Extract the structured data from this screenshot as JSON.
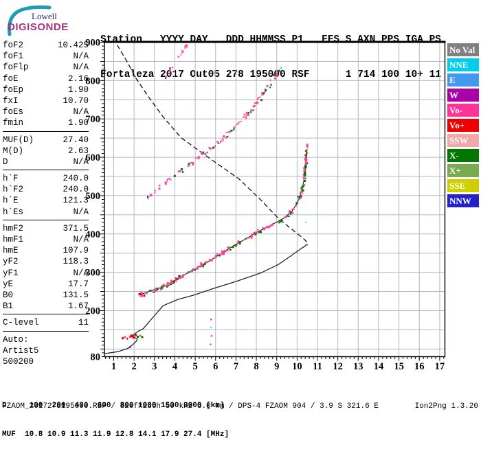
{
  "logo": {
    "line1": "Lowell",
    "line2": "DIGISONDE",
    "arc_color": "#1d9cb4"
  },
  "header": {
    "line1": "Station   YYYY DAY   DDD HHMMSS P1   FFS S AXN PPS IGA PS",
    "line2": "Fortaleza 2017 Out05 278 195000 RSF      1 714 100 10+ 11"
  },
  "sidebar": {
    "sections": [
      {
        "rows": [
          [
            "foF2",
            "10.425"
          ],
          [
            "foF1",
            "N/A"
          ],
          [
            "foFlp",
            "N/A"
          ],
          [
            "foE",
            "2.16"
          ],
          [
            "foEp",
            "1.90"
          ],
          [
            "fxI",
            "10.70"
          ],
          [
            "foEs",
            "N/A"
          ],
          [
            "fmin",
            "1.90"
          ]
        ]
      },
      {
        "rows": [
          [
            "MUF(D)",
            "27.40"
          ],
          [
            "M(D)",
            "2.63"
          ],
          [
            "D",
            "N/A"
          ]
        ]
      },
      {
        "rows": [
          [
            "h`F",
            "240.0"
          ],
          [
            "h`F2",
            "240.0"
          ],
          [
            "h`E",
            "121.3"
          ],
          [
            "h`Es",
            "N/A"
          ]
        ]
      },
      {
        "rows": [
          [
            "hmF2",
            "371.5"
          ],
          [
            "hmF1",
            "N/A"
          ],
          [
            "hmE",
            "107.9"
          ],
          [
            "yF2",
            "118.3"
          ],
          [
            "yF1",
            "N/A"
          ],
          [
            "yE",
            "17.7"
          ],
          [
            "B0",
            "131.5"
          ],
          [
            "B1",
            "1.67"
          ]
        ]
      },
      {
        "rows": [
          [
            "C-level",
            "11"
          ]
        ]
      },
      {
        "rows": [
          [
            "Auto:",
            ""
          ],
          [
            "Artist5",
            ""
          ],
          [
            "500200",
            ""
          ]
        ],
        "no_rule": true
      }
    ]
  },
  "legend": {
    "items": [
      {
        "label": "No Val",
        "color": "#808080"
      },
      {
        "label": "NNE",
        "color": "#00ccee"
      },
      {
        "label": "E",
        "color": "#4499ee"
      },
      {
        "label": "W",
        "color": "#aa00aa"
      },
      {
        "label": "Vo-",
        "color": "#ff3399"
      },
      {
        "label": "Vo+",
        "color": "#ee0000"
      },
      {
        "label": "SSW",
        "color": "#f2a8a8"
      },
      {
        "label": "X-",
        "color": "#007700"
      },
      {
        "label": "X+",
        "color": "#78aa50"
      },
      {
        "label": "SSE",
        "color": "#cfcf00"
      },
      {
        "label": "NNW",
        "color": "#2222cc"
      }
    ]
  },
  "bottom": {
    "d_row": "D     100  200  400  600  800 1000 1500 3000 [km]",
    "muf_row": "MUF  10.8 10.9 11.3 11.9 12.8 14.1 17.9 27.4 [MHz]",
    "status_left": "FZAOM_2017278195000.RSF / 320fx256h 50 kHz 5.0 km / DPS-4 FZAOM 904 / 3.9 S 321.6 E",
    "status_right": "Ion2Png 1.3.20"
  },
  "chart_data": {
    "type": "scatter",
    "x_axis": {
      "unit": "MHz",
      "ticks": [
        1,
        2,
        3,
        4,
        5,
        6,
        7,
        8,
        9,
        10,
        11,
        12,
        13,
        14,
        15,
        16,
        17
      ],
      "range": [
        0.56,
        17.26
      ],
      "minor_step": 0.2
    },
    "y_axis": {
      "unit": "km",
      "labeled_ticks": [
        900,
        800,
        700,
        600,
        500,
        400,
        300,
        200,
        80
      ],
      "range": [
        80,
        900
      ],
      "minor_step": 10,
      "grid_step": 50
    },
    "grid_color": "#b0b6c4",
    "muf_table": {
      "D_km": [
        100,
        200,
        400,
        600,
        800,
        1000,
        1500,
        3000
      ],
      "MUF_MHz": [
        10.8,
        10.9,
        11.3,
        11.9,
        12.8,
        14.1,
        17.9,
        27.4
      ]
    },
    "profile_line": [
      [
        0.58,
        88
      ],
      [
        1.2,
        93
      ],
      [
        1.67,
        101
      ],
      [
        1.95,
        112
      ],
      [
        2.1,
        120
      ],
      [
        2.16,
        126
      ],
      [
        2.02,
        130
      ],
      [
        1.94,
        133
      ],
      [
        2.02,
        139
      ],
      [
        2.2,
        146
      ],
      [
        2.45,
        153
      ],
      [
        2.92,
        182
      ],
      [
        3.43,
        213
      ],
      [
        4.14,
        229
      ],
      [
        4.9,
        240
      ],
      [
        5.9,
        258
      ],
      [
        7.0,
        276
      ],
      [
        8.25,
        299
      ],
      [
        9.1,
        321
      ],
      [
        9.7,
        343
      ],
      [
        10.17,
        361
      ],
      [
        10.38,
        368
      ],
      [
        10.47,
        372
      ],
      [
        10.52,
        371
      ]
    ],
    "fitted_trace": [
      [
        2.25,
        241
      ],
      [
        2.84,
        252
      ],
      [
        3.51,
        264
      ],
      [
        4.42,
        292
      ],
      [
        5.53,
        324
      ],
      [
        6.88,
        369
      ],
      [
        8.23,
        410
      ],
      [
        8.9,
        428
      ],
      [
        9.34,
        441
      ],
      [
        9.75,
        459
      ],
      [
        10.02,
        482
      ],
      [
        10.25,
        518
      ],
      [
        10.4,
        559
      ],
      [
        10.46,
        598
      ],
      [
        10.49,
        622
      ]
    ],
    "transmission_curve_dashed": [
      [
        1.17,
        893
      ],
      [
        1.67,
        848
      ],
      [
        2.08,
        807
      ],
      [
        2.69,
        759
      ],
      [
        3.43,
        705
      ],
      [
        4.31,
        651
      ],
      [
        5.55,
        603
      ],
      [
        7.14,
        544
      ],
      [
        8.25,
        487
      ],
      [
        9.09,
        440
      ],
      [
        9.77,
        411
      ],
      [
        10.27,
        390
      ],
      [
        10.55,
        376
      ]
    ],
    "traces": [
      {
        "name": "F-trace-echoes",
        "anchors": [
          [
            2.25,
            241
          ],
          [
            2.84,
            252
          ],
          [
            3.51,
            264
          ],
          [
            4.42,
            292
          ],
          [
            5.53,
            324
          ],
          [
            6.88,
            369
          ],
          [
            8.23,
            410
          ],
          [
            8.9,
            428
          ],
          [
            9.34,
            441
          ],
          [
            9.75,
            459
          ],
          [
            10.02,
            482
          ],
          [
            10.25,
            518
          ],
          [
            10.4,
            559
          ],
          [
            10.46,
            598
          ],
          [
            10.49,
            622
          ]
        ],
        "density": 0.8,
        "step": 1.6,
        "jitter": 2.2,
        "colors": [
          [
            "#ff4499",
            0.58
          ],
          [
            "#007700",
            0.34
          ],
          [
            "#ee0000",
            0.05
          ],
          [
            "#ff88bb",
            0.03
          ]
        ]
      },
      {
        "name": "second-hop-echoes",
        "anchors": [
          [
            2.67,
            494
          ],
          [
            3.51,
            536
          ],
          [
            4.52,
            575
          ],
          [
            5.54,
            616
          ],
          [
            6.55,
            659
          ],
          [
            7.39,
            702
          ],
          [
            8.06,
            745
          ],
          [
            8.64,
            792
          ],
          [
            9.15,
            828
          ]
        ],
        "density": 0.62,
        "step": 2,
        "jitter": 2.4,
        "colors": [
          [
            "#ff4499",
            0.62
          ],
          [
            "#007700",
            0.3
          ],
          [
            "#ff88bb",
            0.08
          ]
        ]
      },
      {
        "name": "third-hop-echoes",
        "anchors": [
          [
            3.58,
            808
          ],
          [
            4.62,
            897
          ]
        ],
        "density": 0.38,
        "step": 2.2,
        "jitter": 1.6,
        "colors": [
          [
            "#ff4499",
            0.85
          ],
          [
            "#ff88bb",
            0.15
          ]
        ]
      }
    ],
    "extra_dots": [
      [
        1.44,
        128,
        "#ee0000",
        3,
        3
      ],
      [
        1.55,
        131,
        "#ff4499",
        3,
        3
      ],
      [
        1.67,
        127,
        "#ee0000",
        2,
        3
      ],
      [
        1.8,
        132,
        "#ff4499",
        3,
        3
      ],
      [
        1.88,
        134,
        "#ee0000",
        4,
        4
      ],
      [
        1.98,
        130,
        "#ee0000",
        4,
        3
      ],
      [
        2.08,
        136,
        "#cc0000",
        3,
        3
      ],
      [
        2.18,
        132,
        "#007700",
        3,
        3
      ],
      [
        2.3,
        135,
        "#77aa44",
        3,
        3
      ],
      [
        2.4,
        131,
        "#007700",
        3,
        3
      ],
      [
        1.81,
        105,
        "#2222cc",
        2,
        3
      ],
      [
        2.67,
        497,
        "#2222cc",
        2,
        3
      ],
      [
        3.55,
        806,
        "#2222cc",
        2,
        2
      ],
      [
        2.28,
        243,
        "#ee0000",
        4,
        3
      ],
      [
        2.4,
        240,
        "#ff4499",
        3,
        3
      ],
      [
        2.5,
        238,
        "#ee0000",
        3,
        2
      ],
      [
        5.78,
        177,
        "#cc00cc",
        2,
        2
      ],
      [
        5.78,
        156,
        "#33ccee",
        2,
        2
      ],
      [
        5.8,
        134,
        "#cc00cc",
        2,
        2
      ],
      [
        5.76,
        112,
        "#9933aa",
        2,
        2
      ],
      [
        10.45,
        430,
        "#33ccee",
        2,
        2
      ],
      [
        9.22,
        833,
        "#33ccee",
        2,
        3
      ],
      [
        10.5,
        630,
        "#ff4499",
        3,
        6
      ],
      [
        10.46,
        610,
        "#ee0000",
        2,
        3
      ]
    ]
  }
}
